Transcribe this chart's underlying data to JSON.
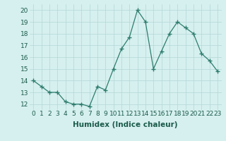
{
  "x": [
    0,
    1,
    2,
    3,
    4,
    5,
    6,
    7,
    8,
    9,
    10,
    11,
    12,
    13,
    14,
    15,
    16,
    17,
    18,
    19,
    20,
    21,
    22,
    23
  ],
  "y": [
    14.0,
    13.5,
    13.0,
    13.0,
    12.2,
    12.0,
    12.0,
    11.8,
    13.5,
    13.2,
    15.0,
    16.7,
    17.7,
    20.0,
    19.0,
    15.0,
    16.5,
    18.0,
    19.0,
    18.5,
    18.0,
    16.3,
    15.7,
    14.8
  ],
  "line_color": "#2e7d6e",
  "marker": "+",
  "marker_size": 4,
  "marker_lw": 1.0,
  "bg_color": "#d6f0ef",
  "grid_color": "#b8dada",
  "xlabel": "Humidex (Indice chaleur)",
  "ylabel_ticks": [
    12,
    13,
    14,
    15,
    16,
    17,
    18,
    19,
    20
  ],
  "xlim": [
    -0.5,
    23.5
  ],
  "ylim": [
    11.5,
    20.5
  ],
  "xlabel_fontsize": 7.5,
  "tick_fontsize": 6.5,
  "line_width": 0.9
}
